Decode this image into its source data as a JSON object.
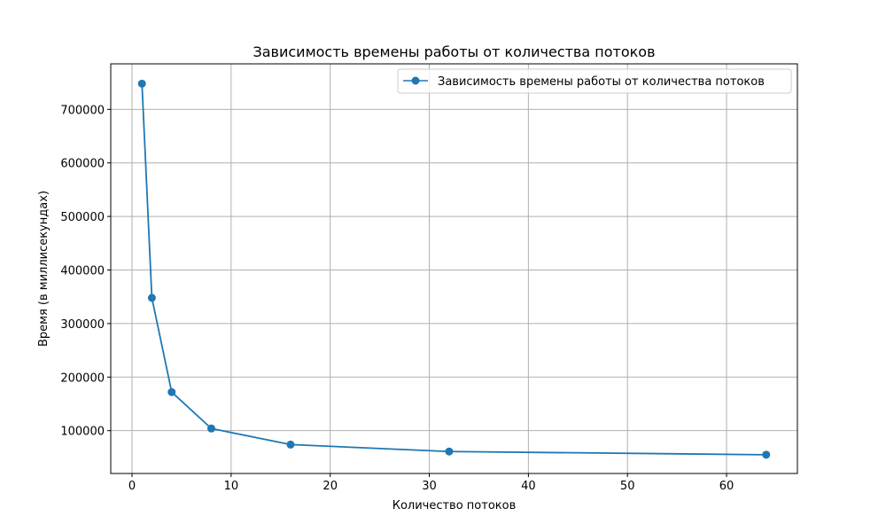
{
  "chart_data": {
    "type": "line",
    "title": "Зависимость времены работы от количества потоков",
    "xlabel": "Количество потоков",
    "ylabel": "Время (в миллисекундах)",
    "xlim": [
      -2.15,
      67.15
    ],
    "ylim": [
      20000,
      785000
    ],
    "xticks": [
      0,
      10,
      20,
      30,
      40,
      50,
      60
    ],
    "yticks": [
      100000,
      200000,
      300000,
      400000,
      500000,
      600000,
      700000
    ],
    "grid": true,
    "legend_position": "top-right",
    "colors": {
      "series": "#1f77b4",
      "grid": "#b0b0b0"
    },
    "series": [
      {
        "name": "Зависимость времены работы от количества потоков",
        "x": [
          1,
          2,
          4,
          8,
          16,
          32,
          64
        ],
        "y": [
          748000,
          348000,
          172000,
          104000,
          74000,
          61000,
          55000
        ]
      }
    ]
  }
}
